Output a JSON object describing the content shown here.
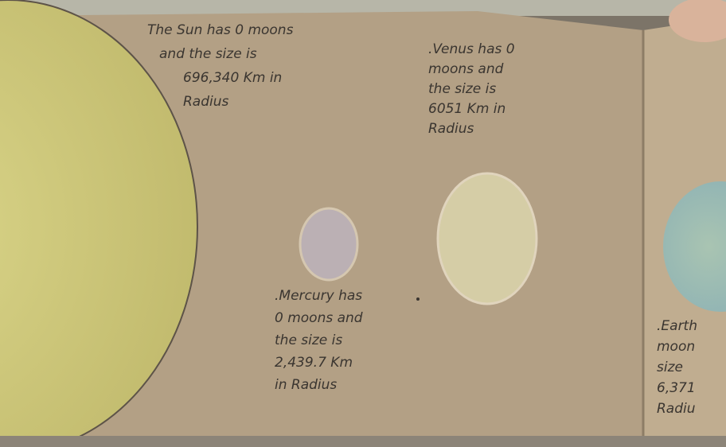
{
  "notes": [
    {
      "id": "sun",
      "lines": [
        "The Sun has 0 moons",
        "and the size is",
        "696,340 Km in",
        "Radius"
      ]
    },
    {
      "id": "venus",
      "lines": [
        ".Venus has 0",
        "moons and",
        "the size is",
        "6051 Km in",
        "Radius"
      ]
    },
    {
      "id": "mercury",
      "lines": [
        ".Mercury has",
        "0 moons and",
        "the size is",
        "2,439.7 Km",
        "in Radius"
      ]
    },
    {
      "id": "earth",
      "lines": [
        ".Earth",
        "moon",
        "size",
        "6,371",
        "Radiu"
      ]
    }
  ]
}
